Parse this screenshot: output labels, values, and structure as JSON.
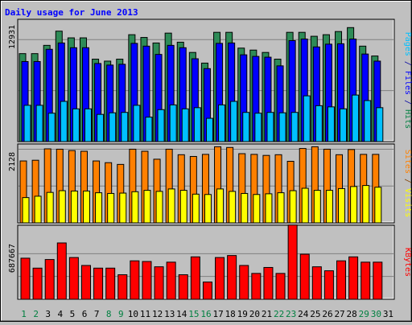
{
  "chart_data": {
    "type": "bar",
    "title": "Daily usage for June 2013",
    "categories": [
      "1",
      "2",
      "3",
      "4",
      "5",
      "6",
      "7",
      "8",
      "9",
      "10",
      "11",
      "12",
      "13",
      "14",
      "15",
      "16",
      "17",
      "18",
      "19",
      "20",
      "21",
      "22",
      "23",
      "24",
      "25",
      "26",
      "27",
      "28",
      "29",
      "30",
      "31"
    ],
    "weekend_days": [
      "1",
      "2",
      "8",
      "9",
      "15",
      "16",
      "22",
      "23",
      "29",
      "30"
    ],
    "panels": [
      {
        "name": "pages-files-hits",
        "ytick_label": "12931",
        "ytick_value": 12931,
        "ylim": [
          0,
          15500
        ],
        "right_label_parts": [
          {
            "text": "Pages",
            "color": "#00c0ff"
          },
          {
            "text": " / ",
            "color": "#0000a0"
          },
          {
            "text": "Files",
            "color": "#0000ff"
          },
          {
            "text": " / ",
            "color": "#0000a0"
          },
          {
            "text": "Hits",
            "color": "#008040"
          }
        ],
        "series": [
          {
            "name": "Hits",
            "color": "#2e8b57",
            "values": [
              11150,
              11150,
              12200,
              14000,
              13150,
              13150,
              10450,
              10200,
              10450,
              13550,
              13200,
              12500,
              13750,
              12600,
              11300,
              9950,
              13850,
              13850,
              11850,
              11600,
              11300,
              10450,
              13850,
              13850,
              13350,
              13550,
              13950,
              14450,
              12100,
              10850,
              0
            ]
          },
          {
            "name": "Files",
            "color": "#0000ff",
            "values": [
              10150,
              10150,
              11700,
              12500,
              11900,
              11900,
              9900,
              9700,
              9800,
              12450,
              12100,
              11050,
              12200,
              11900,
              10500,
              9250,
              12450,
              12500,
              11000,
              10800,
              10700,
              9600,
              12800,
              13000,
              12000,
              12350,
              12400,
              13000,
              11100,
              10200,
              0
            ]
          },
          {
            "name": "Pages",
            "color": "#00c0ff",
            "values": [
              4600,
              4600,
              3600,
              5100,
              4150,
              4150,
              3450,
              3650,
              3700,
              4600,
              3100,
              4050,
              4650,
              4150,
              4300,
              2950,
              4650,
              5100,
              3700,
              3600,
              3700,
              3650,
              3700,
              5800,
              4550,
              4400,
              4150,
              5900,
              5200,
              4300,
              0
            ]
          }
        ]
      },
      {
        "name": "sites-visits",
        "ytick_label": "2128",
        "ytick_value": 2128,
        "ylim": [
          0,
          2280
        ],
        "right_label_parts": [
          {
            "text": "Sites",
            "color": "#ff8000"
          },
          {
            "text": " / ",
            "color": "#804000"
          },
          {
            "text": "Visits",
            "color": "#ffff00"
          }
        ],
        "series": [
          {
            "name": "Visits",
            "color": "#ff8000",
            "values": [
              1790,
              1810,
              2140,
              2130,
              2090,
              2070,
              1790,
              1740,
              1690,
              2130,
              2070,
              1840,
              2130,
              1970,
              1920,
              1980,
              2200,
              2180,
              2000,
              1980,
              1950,
              1970,
              1780,
              2150,
              2200,
              2130,
              1970,
              2120,
              1980,
              1980,
              0
            ]
          },
          {
            "name": "Sites",
            "color": "#ffff00",
            "values": [
              730,
              770,
              880,
              930,
              920,
              920,
              870,
              850,
              860,
              900,
              940,
              910,
              980,
              940,
              830,
              820,
              980,
              910,
              850,
              820,
              840,
              870,
              930,
              1000,
              940,
              940,
              990,
              1050,
              1080,
              1030,
              0
            ]
          }
        ]
      },
      {
        "name": "kbytes",
        "ytick_label": "687667",
        "ytick_value": 687667,
        "ylim": [
          0,
          1117000
        ],
        "right_label_parts": [
          {
            "text": "KBytes",
            "color": "#ff0000"
          }
        ],
        "series": [
          {
            "name": "KBytes",
            "color": "#ff0000",
            "values": [
              620000,
              470000,
              600000,
              850000,
              630000,
              510000,
              470000,
              470000,
              370000,
              580000,
              570000,
              490000,
              560000,
              370000,
              640000,
              260000,
              630000,
              660000,
              510000,
              390000,
              480000,
              390000,
              1120000,
              680000,
              490000,
              430000,
              580000,
              640000,
              560000,
              560000,
              0
            ]
          }
        ]
      }
    ],
    "grid": true
  }
}
